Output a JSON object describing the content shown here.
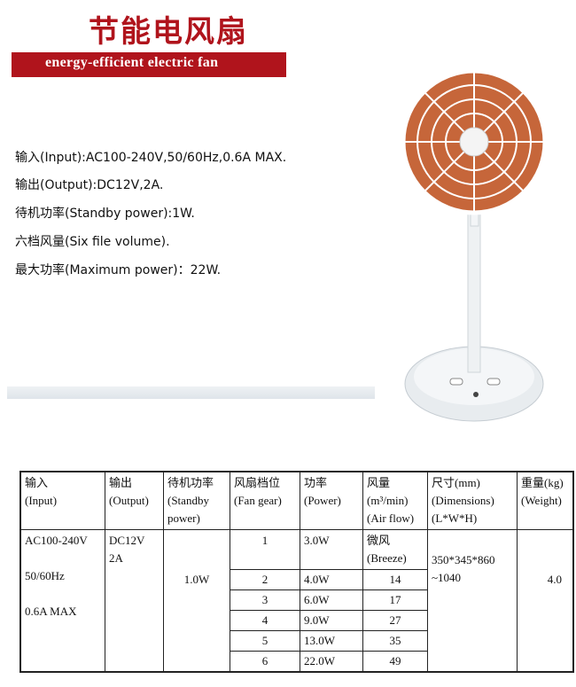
{
  "title_cn": "节能电风扇",
  "title_en": "energy-efficient electric fan",
  "brand_color": "#b0141c",
  "specs": [
    "输入(Input):AC100-240V,50/60Hz,0.6A MAX.",
    "输出(Output):DC12V,2A.",
    "待机功率(Standby power):1W.",
    "六档风量(Six file volume).",
    "最大功率(Maximum power)：22W."
  ],
  "table": {
    "headers": [
      [
        "输入",
        "(Input)"
      ],
      [
        "输出",
        "(Output)"
      ],
      [
        "待机功率",
        "(Standby",
        "power)"
      ],
      [
        "风扇档位",
        "(Fan gear)"
      ],
      [
        "功率",
        "(Power)"
      ],
      [
        "风量",
        "(m³/min)",
        "(Air flow)"
      ],
      [
        "尺寸(mm)",
        "(Dimensions)",
        "(L*W*H)"
      ],
      [
        "重量(kg)",
        "(Weight)"
      ]
    ],
    "input": [
      "AC100-240V",
      "50/60Hz",
      "0.6A MAX"
    ],
    "output": [
      "DC12V",
      "2A"
    ],
    "standby": "1.0W",
    "dimensions": [
      "350*345*860",
      "~1040"
    ],
    "weight": "4.0",
    "gears": [
      {
        "gear": "1",
        "power": "3.0W",
        "airflow": "微风",
        "airflow2": "(Breeze)"
      },
      {
        "gear": "2",
        "power": "4.0W",
        "airflow": "14"
      },
      {
        "gear": "3",
        "power": "6.0W",
        "airflow": "17"
      },
      {
        "gear": "4",
        "power": "9.0W",
        "airflow": "27"
      },
      {
        "gear": "5",
        "power": "13.0W",
        "airflow": "35"
      },
      {
        "gear": "6",
        "power": "22.0W",
        "airflow": "49"
      }
    ]
  }
}
